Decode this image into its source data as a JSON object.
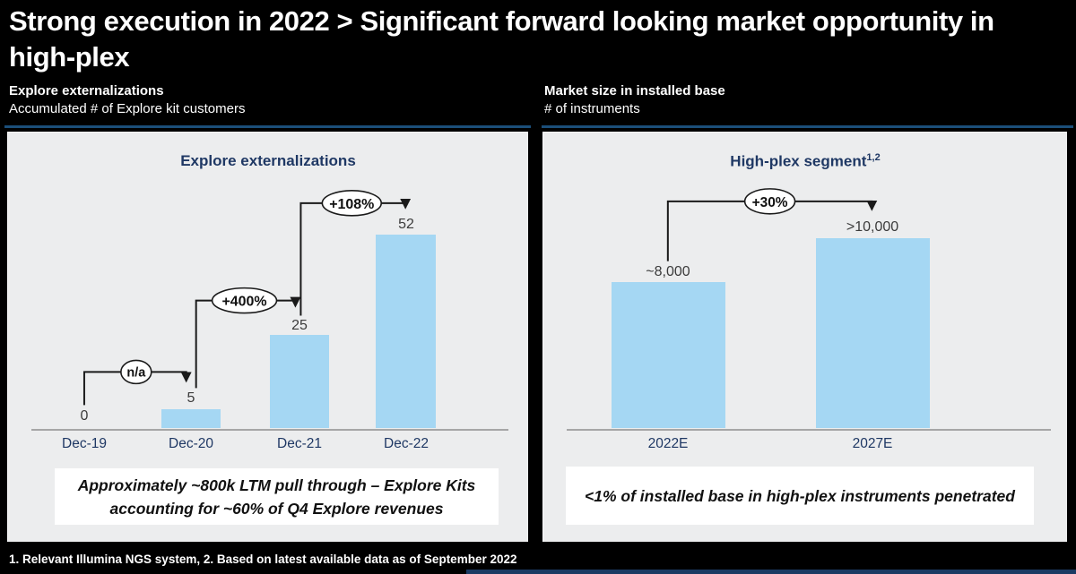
{
  "title": {
    "full": "Strong execution in 2022 > Significant forward looking market opportunity in high-plex",
    "lines": [
      "Strong execution in 2022 > Significant forward looking market opportunity in",
      "high-plex"
    ]
  },
  "left_section": {
    "heading": "Explore externalizations",
    "subheading": "Accumulated # of Explore kit customers",
    "chart_title": "Explore externalizations",
    "callout_lines": [
      "Approximately ~800k LTM pull through – Explore Kits",
      "accounting for ~60% of Q4 Explore revenues"
    ]
  },
  "right_section": {
    "heading": "Market size in installed base",
    "subheading": "# of instruments",
    "chart_title": "High-plex segment",
    "chart_title_superscript": "1,2",
    "callout_lines": [
      "<1% of installed base in high-plex instruments penetrated"
    ]
  },
  "footnote": "1. Relevant Illumina NGS system, 2. Based on latest available data as of September 2022",
  "colors": {
    "background": "#000000",
    "panel_bg": "#ECEDEE",
    "bar_fill": "#A5D7F3",
    "navy_text": "#1F3864",
    "header_rule_blue": "#1B4E79",
    "footer_bar_blue": "#1B3A63"
  },
  "chart_data": [
    {
      "type": "bar",
      "title": "Explore externalizations",
      "ylabel": "Accumulated # of Explore kit customers",
      "categories": [
        "Dec-19",
        "Dec-20",
        "Dec-21",
        "Dec-22"
      ],
      "values": [
        0,
        5,
        25,
        52
      ],
      "value_labels": [
        "0",
        "5",
        "25",
        "52"
      ],
      "annotations": [
        {
          "from": "Dec-19",
          "to": "Dec-20",
          "label": "n/a"
        },
        {
          "from": "Dec-20",
          "to": "Dec-21",
          "label": "+400%"
        },
        {
          "from": "Dec-21",
          "to": "Dec-22",
          "label": "+108%"
        }
      ],
      "legend": "none",
      "grid": false
    },
    {
      "type": "bar",
      "title": "High-plex segment",
      "ylabel": "# of instruments",
      "categories": [
        "2022E",
        "2027E"
      ],
      "values": [
        8000,
        10400
      ],
      "value_labels": [
        "~8,000",
        ">10,000"
      ],
      "annotations": [
        {
          "from": "2022E",
          "to": "2027E",
          "label": "+30%"
        }
      ],
      "legend": "none",
      "grid": false
    }
  ]
}
